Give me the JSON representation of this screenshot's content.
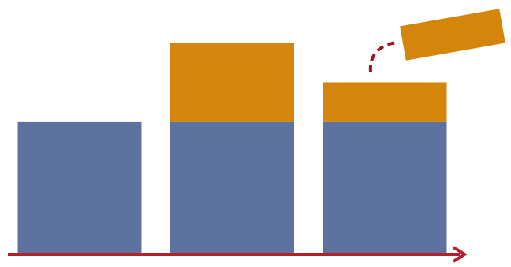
{
  "chart_data": {
    "type": "stacked-bar",
    "categories": [
      null,
      null,
      null
    ],
    "series": [
      {
        "color": "#5e72a0",
        "values": [
          100,
          100,
          100
        ]
      },
      {
        "color": "#d4860a",
        "values": [
          null,
          60,
          30
        ]
      }
    ],
    "ylim": [
      0,
      160
    ],
    "axis_color": "#b3202a"
  }
}
